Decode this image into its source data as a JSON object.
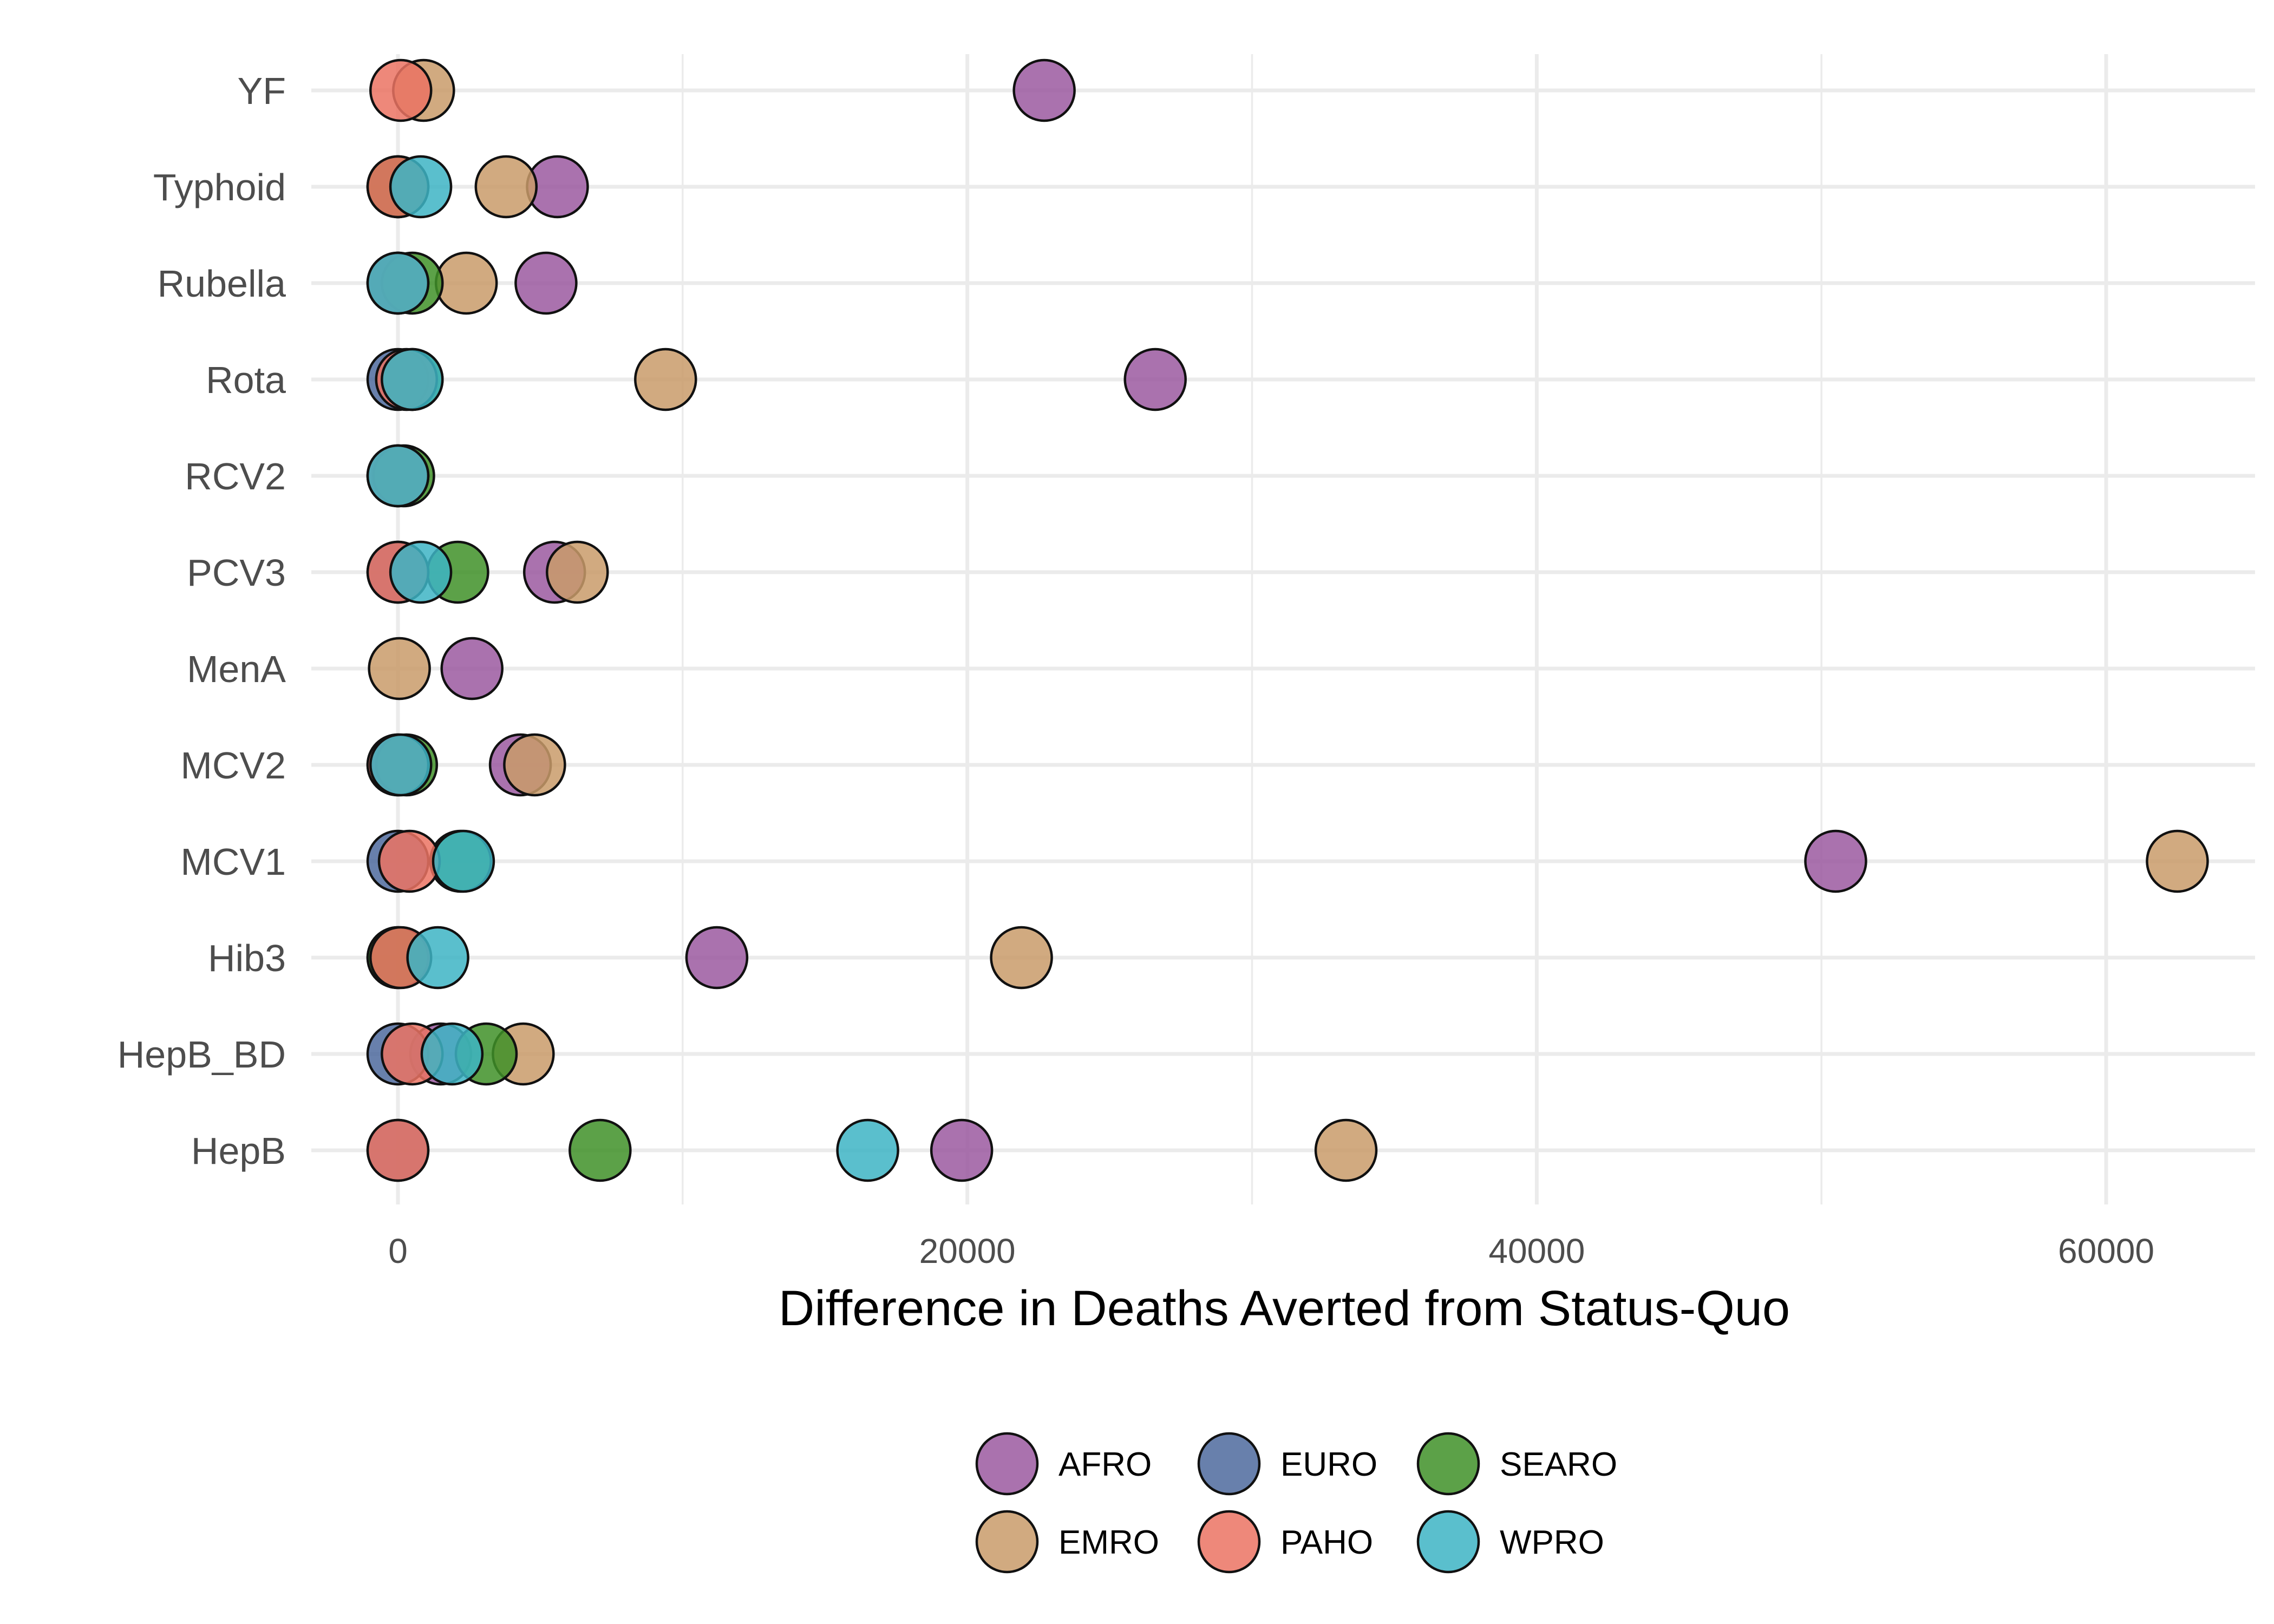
{
  "chart_data": {
    "type": "scatter",
    "title": "",
    "xlabel": "Difference in Deaths Averted from Status-Quo",
    "ylabel": "",
    "xlim": [
      -3000,
      65000
    ],
    "xticks": [
      0,
      20000,
      40000,
      60000
    ],
    "xtick_labels": [
      "0",
      "20000",
      "40000",
      "60000"
    ],
    "categories": [
      "HepB",
      "HepB_BD",
      "Hib3",
      "MCV1",
      "MCV2",
      "MenA",
      "PCV3",
      "RCV2",
      "Rota",
      "Rubella",
      "Typhoid",
      "YF"
    ],
    "grid": true,
    "legend_position": "bottom",
    "series": [
      {
        "name": "AFRO",
        "color": "#9B59A0",
        "points": [
          {
            "category": "YF",
            "x": 22700
          },
          {
            "category": "Typhoid",
            "x": 5600
          },
          {
            "category": "Rubella",
            "x": 5200
          },
          {
            "category": "Rota",
            "x": 26600
          },
          {
            "category": "PCV3",
            "x": 5500
          },
          {
            "category": "MenA",
            "x": 2600
          },
          {
            "category": "MCV2",
            "x": 4300
          },
          {
            "category": "MCV1",
            "x": 50500
          },
          {
            "category": "Hib3",
            "x": 11200
          },
          {
            "category": "HepB_BD",
            "x": 1500
          },
          {
            "category": "HepB",
            "x": 19800
          }
        ]
      },
      {
        "name": "EMRO",
        "color": "#C99B6A",
        "points": [
          {
            "category": "YF",
            "x": 900
          },
          {
            "category": "Typhoid",
            "x": 3800
          },
          {
            "category": "Rubella",
            "x": 2400
          },
          {
            "category": "Rota",
            "x": 9400
          },
          {
            "category": "PCV3",
            "x": 6300
          },
          {
            "category": "MenA",
            "x": 50
          },
          {
            "category": "MCV2",
            "x": 4800
          },
          {
            "category": "MCV1",
            "x": 62500
          },
          {
            "category": "Hib3",
            "x": 21900
          },
          {
            "category": "HepB_BD",
            "x": 4400
          },
          {
            "category": "HepB",
            "x": 33300
          }
        ]
      },
      {
        "name": "EURO",
        "color": "#4E6A9E",
        "points": [
          {
            "category": "Typhoid",
            "x": 0
          },
          {
            "category": "Rubella",
            "x": 0
          },
          {
            "category": "Rota",
            "x": 0
          },
          {
            "category": "RCV2",
            "x": 0
          },
          {
            "category": "PCV3",
            "x": 0
          },
          {
            "category": "MCV2",
            "x": 0
          },
          {
            "category": "MCV1",
            "x": 0
          },
          {
            "category": "Hib3",
            "x": 0
          },
          {
            "category": "HepB_BD",
            "x": 0
          },
          {
            "category": "HepB",
            "x": 0
          }
        ]
      },
      {
        "name": "SEARO",
        "color": "#3F9128",
        "points": [
          {
            "category": "Typhoid",
            "x": 0
          },
          {
            "category": "Rubella",
            "x": 500
          },
          {
            "category": "Rota",
            "x": 500
          },
          {
            "category": "RCV2",
            "x": 200
          },
          {
            "category": "PCV3",
            "x": 2100
          },
          {
            "category": "MCV2",
            "x": 300
          },
          {
            "category": "MCV1",
            "x": 2200
          },
          {
            "category": "Hib3",
            "x": 0
          },
          {
            "category": "HepB_BD",
            "x": 3100
          },
          {
            "category": "HepB",
            "x": 7100
          }
        ]
      },
      {
        "name": "PAHO",
        "color": "#EB7363",
        "points": [
          {
            "category": "YF",
            "x": 100
          },
          {
            "category": "Typhoid",
            "x": 0
          },
          {
            "category": "Rubella",
            "x": 0
          },
          {
            "category": "Rota",
            "x": 300
          },
          {
            "category": "RCV2",
            "x": 0
          },
          {
            "category": "PCV3",
            "x": 0
          },
          {
            "category": "MCV2",
            "x": 0
          },
          {
            "category": "MCV1",
            "x": 400
          },
          {
            "category": "Hib3",
            "x": 100
          },
          {
            "category": "HepB_BD",
            "x": 500
          },
          {
            "category": "HepB",
            "x": 0
          }
        ]
      },
      {
        "name": "WPRO",
        "color": "#3DB4C4",
        "points": [
          {
            "category": "Typhoid",
            "x": 800
          },
          {
            "category": "Rubella",
            "x": 0
          },
          {
            "category": "Rota",
            "x": 500
          },
          {
            "category": "RCV2",
            "x": 0
          },
          {
            "category": "PCV3",
            "x": 800
          },
          {
            "category": "MCV2",
            "x": 100
          },
          {
            "category": "MCV1",
            "x": 2300
          },
          {
            "category": "Hib3",
            "x": 1400
          },
          {
            "category": "HepB_BD",
            "x": 1900
          },
          {
            "category": "HepB",
            "x": 16500
          }
        ]
      }
    ]
  }
}
